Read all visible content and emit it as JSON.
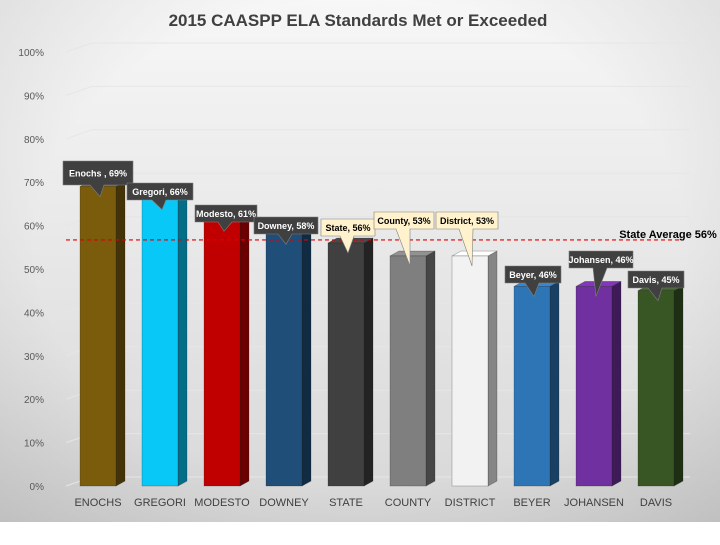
{
  "chart_data": {
    "type": "bar",
    "title": "2015 CAASPP ELA Standards Met or Exceeded",
    "xlabel": "",
    "ylabel": "",
    "ylim": [
      0,
      100
    ],
    "ytick_labels": [
      "0%",
      "10%",
      "20%",
      "30%",
      "40%",
      "50%",
      "60%",
      "70%",
      "80%",
      "90%",
      "100%"
    ],
    "categories": [
      "ENOCHS",
      "GREGORI",
      "MODESTO",
      "DOWNEY",
      "STATE",
      "COUNTY",
      "DISTRICT",
      "BEYER",
      "JOHANSEN",
      "DAVIS"
    ],
    "values": [
      69,
      66,
      61,
      58,
      56,
      53,
      53,
      46,
      46,
      45
    ],
    "colors": [
      "#7a5c0c",
      "#08c8f8",
      "#c00000",
      "#1f4e79",
      "#404040",
      "#7f7f7f",
      "#f2f2f2",
      "#2e75b6",
      "#7030a0",
      "#375623"
    ],
    "callouts": [
      "Enochs , 69%",
      "Gregori, 66%",
      "Modesto, 61%",
      "Downey, 58%",
      "State, 56%",
      "County, 53%",
      "District, 53%",
      "Beyer, 46%",
      "Johansen, 46%",
      "Davis, 45%"
    ],
    "callout_colors": [
      "#404040",
      "#404040",
      "#404040",
      "#404040",
      "#fff2cc",
      "#fff2cc",
      "#fff2cc",
      "#404040",
      "#404040",
      "#404040"
    ],
    "callout_text_colors": [
      "#ffffff",
      "#ffffff",
      "#ffffff",
      "#ffffff",
      "#000000",
      "#000000",
      "#000000",
      "#ffffff",
      "#ffffff",
      "#ffffff"
    ],
    "reference_line": {
      "value": 56,
      "label": "State Average 56%",
      "color": "#e00000"
    }
  }
}
